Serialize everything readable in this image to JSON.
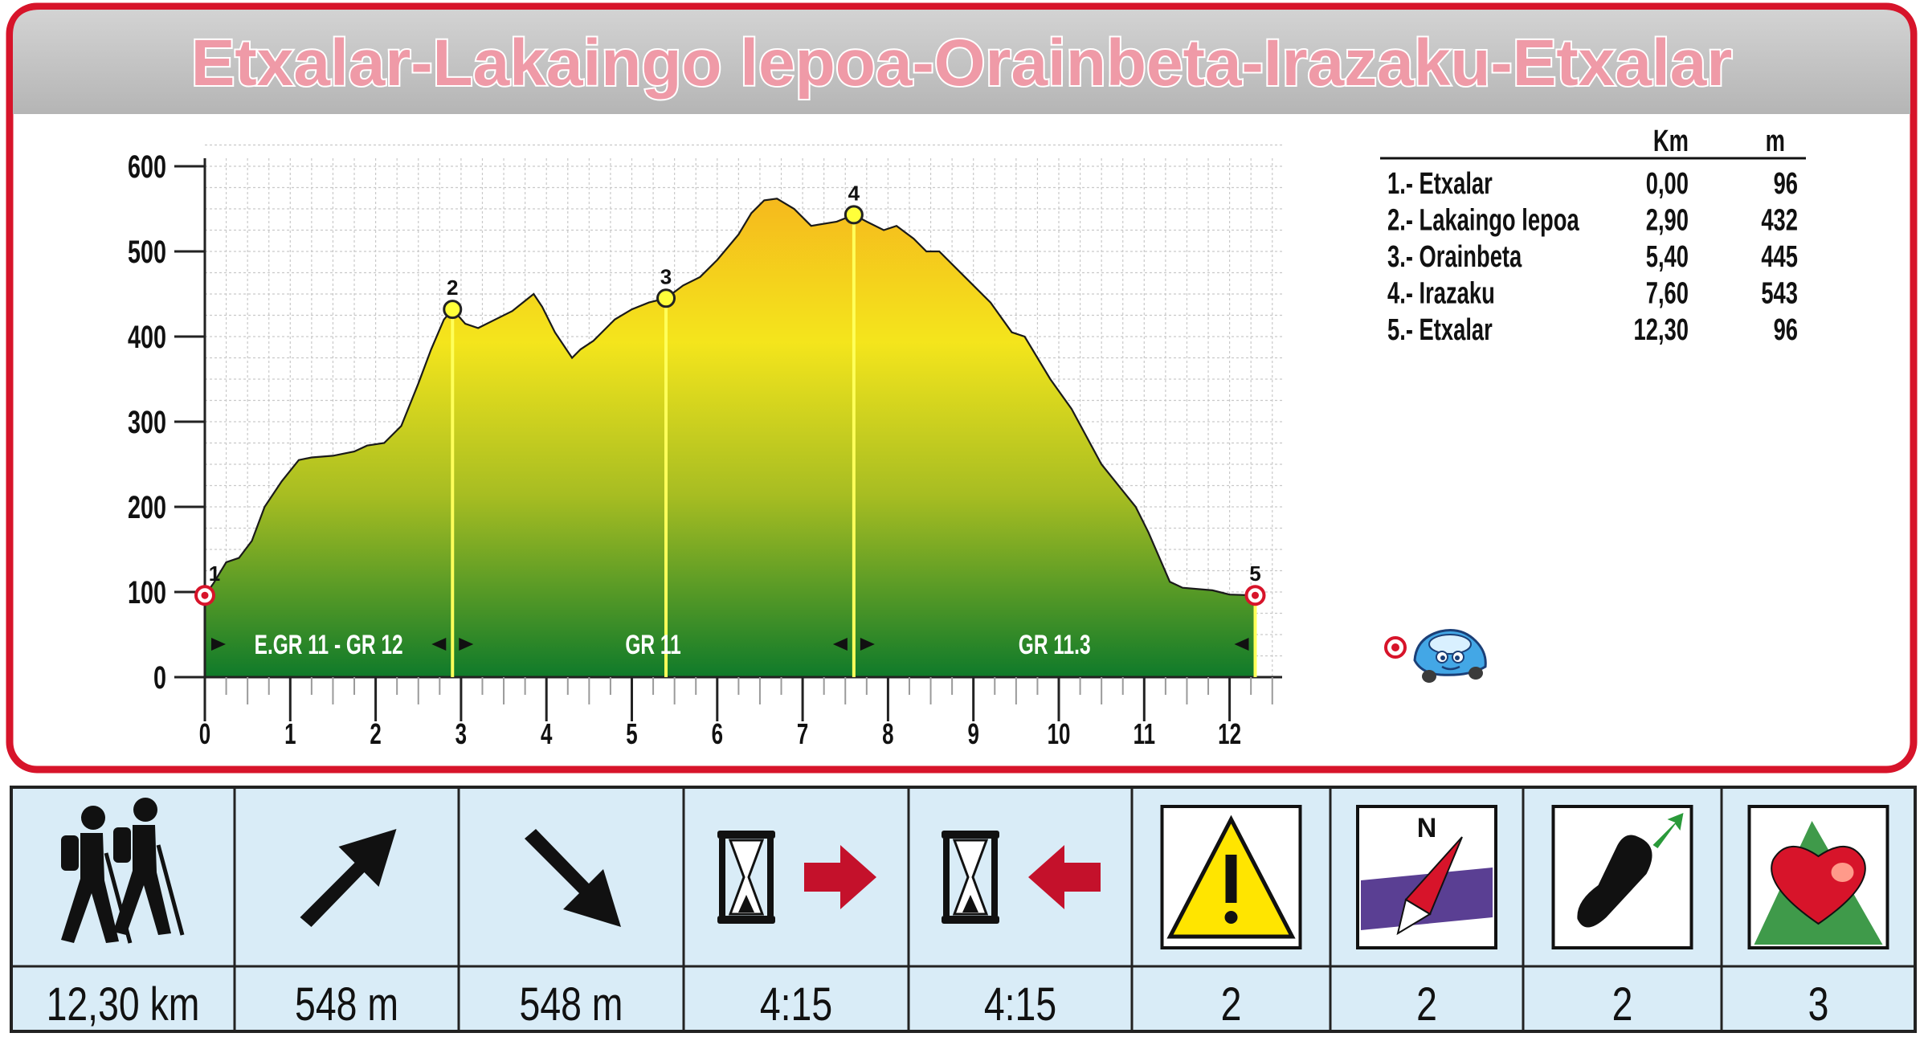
{
  "title": "Etxalar-Lakaingo lepoa-Orainbeta-Irazaku-Etxalar",
  "colors": {
    "frame_red": "#d7142a",
    "title_bar": "#c3c3c3",
    "grid": "#c8c8c8",
    "profile_top": "#f6c21e",
    "profile_mid": "#f3e41c",
    "profile_bottom": "#0f7a2a",
    "footer_bg": "#d9ecf7",
    "arrow_red": "#c4112b",
    "warning_yellow": "#ffe500"
  },
  "chart_data": {
    "type": "area",
    "title": "Etxalar-Lakaingo lepoa-Orainbeta-Irazaku-Etxalar",
    "xlabel": "",
    "ylabel": "",
    "xlim": [
      0,
      12.6
    ],
    "ylim": [
      0,
      600
    ],
    "x_ticks": [
      "0",
      "1",
      "2",
      "3",
      "4",
      "5",
      "6",
      "7",
      "8",
      "9",
      "10",
      "11",
      "12"
    ],
    "y_ticks": [
      "0",
      "100",
      "200",
      "300",
      "400",
      "500",
      "600"
    ],
    "grid": true,
    "profile": {
      "x": [
        0,
        0.1,
        0.25,
        0.4,
        0.55,
        0.7,
        0.9,
        1.1,
        1.25,
        1.5,
        1.75,
        1.9,
        2.1,
        2.3,
        2.5,
        2.65,
        2.8,
        2.9,
        3.05,
        3.2,
        3.4,
        3.6,
        3.85,
        3.95,
        4.1,
        4.3,
        4.4,
        4.55,
        4.8,
        5.0,
        5.2,
        5.4,
        5.6,
        5.8,
        6.0,
        6.25,
        6.4,
        6.55,
        6.7,
        6.9,
        7.1,
        7.4,
        7.6,
        7.75,
        7.95,
        8.1,
        8.3,
        8.45,
        8.6,
        8.9,
        9.2,
        9.45,
        9.6,
        9.9,
        10.15,
        10.5,
        10.9,
        11.05,
        11.3,
        11.45,
        11.8,
        12.0,
        12.3
      ],
      "y": [
        96,
        110,
        135,
        140,
        160,
        200,
        230,
        255,
        258,
        260,
        265,
        272,
        275,
        295,
        345,
        385,
        420,
        432,
        415,
        410,
        420,
        430,
        450,
        435,
        405,
        375,
        385,
        395,
        420,
        432,
        440,
        445,
        460,
        470,
        490,
        520,
        545,
        560,
        562,
        550,
        530,
        535,
        543,
        535,
        525,
        530,
        515,
        500,
        500,
        470,
        440,
        405,
        400,
        350,
        315,
        250,
        200,
        170,
        112,
        105,
        102,
        97,
        96
      ]
    },
    "points": [
      {
        "label": "1",
        "km": 0.0,
        "m": 96,
        "marker": "red"
      },
      {
        "label": "2",
        "km": 2.9,
        "m": 432,
        "marker": "yellow"
      },
      {
        "label": "3",
        "km": 5.4,
        "m": 445,
        "marker": "yellow"
      },
      {
        "label": "4",
        "km": 7.6,
        "m": 543,
        "marker": "yellow"
      },
      {
        "label": "5",
        "km": 12.3,
        "m": 96,
        "marker": "red"
      }
    ],
    "segments": [
      {
        "label": "E.GR 11 - GR 12",
        "from": 0.0,
        "to": 2.9
      },
      {
        "label": "GR 11",
        "from": 2.9,
        "to": 7.6
      },
      {
        "label": "GR 11.3",
        "from": 7.6,
        "to": 12.3
      }
    ]
  },
  "waypoint_table": {
    "headers": [
      "Km",
      "m"
    ],
    "rows": [
      {
        "name": "1.- Etxalar",
        "km": "0,00",
        "m": "96"
      },
      {
        "name": "2.- Lakaingo lepoa",
        "km": "2,90",
        "m": "432"
      },
      {
        "name": "3.- Orainbeta",
        "km": "5,40",
        "m": "445"
      },
      {
        "name": "4.- Irazaku",
        "km": "7,60",
        "m": "543"
      },
      {
        "name": "5.- Etxalar",
        "km": "12,30",
        "m": "96"
      }
    ]
  },
  "stats": [
    {
      "icon": "hikers-icon",
      "value": "12,30 km"
    },
    {
      "icon": "ascent-arrow-icon",
      "value": "548 m"
    },
    {
      "icon": "descent-arrow-icon",
      "value": "548 m"
    },
    {
      "icon": "hourglass-forward-icon",
      "value": "4:15"
    },
    {
      "icon": "hourglass-return-icon",
      "value": "4:15"
    },
    {
      "icon": "difficulty-warning-icon",
      "value": "2"
    },
    {
      "icon": "orientation-compass-icon",
      "value": "2"
    },
    {
      "icon": "footprint-effort-icon",
      "value": "2"
    },
    {
      "icon": "heart-mountain-icon",
      "value": "3"
    }
  ]
}
